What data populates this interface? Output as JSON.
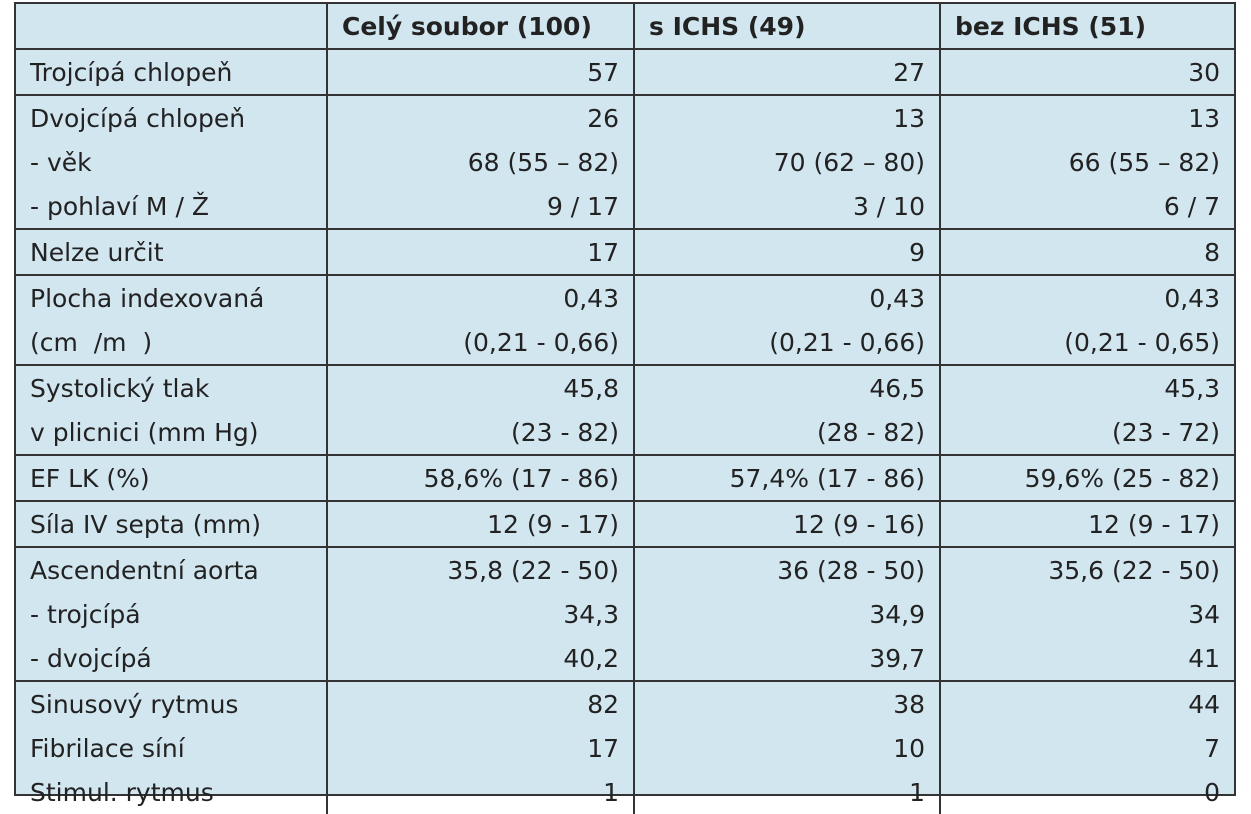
{
  "table": {
    "header": [
      "",
      "Celý soubor (100)",
      "s ICHS (49)",
      "bez ICHS (51)"
    ],
    "groups": [
      [
        [
          "Trojcípá chlopeň",
          "57",
          "27",
          "30"
        ]
      ],
      [
        [
          "Dvojcípá chlopeň",
          "26",
          "13",
          "13"
        ],
        [
          "- věk",
          "68 (55 – 82)",
          "70 (62 – 80)",
          "66 (55 – 82)"
        ],
        [
          "- pohlaví M / Ž",
          "9 / 17",
          "3 / 10",
          "6 / 7"
        ]
      ],
      [
        [
          "Nelze určit",
          "17",
          "9",
          "8"
        ]
      ],
      [
        [
          "Plocha indexovaná",
          "0,43",
          "0,43",
          "0,43"
        ],
        [
          "(cm  /m  )",
          "(0,21 - 0,66)",
          "(0,21 - 0,66)",
          "(0,21 - 0,65)"
        ]
      ],
      [
        [
          "Systolický tlak",
          "45,8",
          "46,5",
          "45,3"
        ],
        [
          "v plicnici (mm Hg)",
          "(23 - 82)",
          "(28 - 82)",
          "(23 - 72)"
        ]
      ],
      [
        [
          "EF LK (%)",
          "58,6% (17 - 86)",
          "57,4% (17 - 86)",
          "59,6% (25 - 82)"
        ]
      ],
      [
        [
          "Síla IV septa (mm)",
          "12 (9 - 17)",
          "12 (9 - 16)",
          "12 (9 - 17)"
        ]
      ],
      [
        [
          "Ascendentní aorta",
          "35,8 (22 - 50)",
          "36 (28 - 50)",
          "35,6 (22 - 50)"
        ],
        [
          "- trojcípá",
          "34,3",
          "34,9",
          "34"
        ],
        [
          "- dvojcípá",
          "40,2",
          "39,7",
          "41"
        ]
      ],
      [
        [
          "Sinusový rytmus",
          "82",
          "38",
          "44"
        ],
        [
          "Fibrilace síní",
          "17",
          "10",
          "7"
        ],
        [
          "Stimul. rytmus",
          "1",
          "1",
          "0"
        ]
      ]
    ]
  }
}
